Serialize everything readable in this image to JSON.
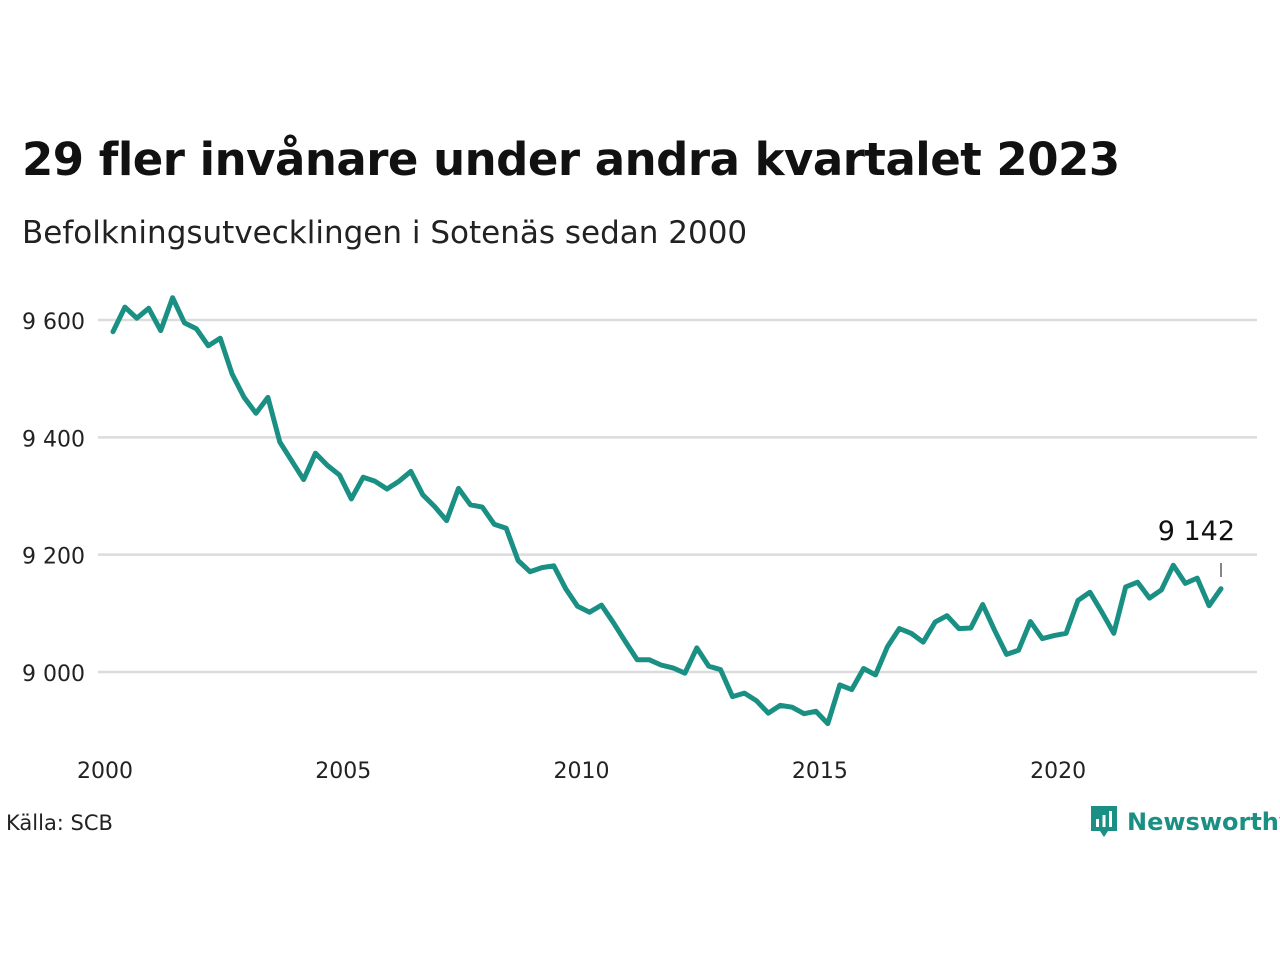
{
  "title": "29 fler invånare under andra kvartalet 2023",
  "subtitle": "Befolkningsutvecklingen i Sotenäs sedan 2000",
  "source": "Källa: SCB",
  "brand": {
    "name": "Newsworthy",
    "icon": "bar-chart-icon",
    "color": "#1a8f83"
  },
  "chart_data": {
    "type": "line",
    "title": "29 fler invånare under andra kvartalet 2023",
    "subtitle": "Befolkningsutvecklingen i Sotenäs sedan 2000",
    "xlabel": "",
    "ylabel": "",
    "xlim": [
      2000,
      2024
    ],
    "ylim": [
      8920,
      9640
    ],
    "x_ticks": [
      2000,
      2005,
      2010,
      2015,
      2020
    ],
    "x_tick_labels": [
      "2000",
      "2005",
      "2010",
      "2015",
      "2020"
    ],
    "y_ticks": [
      9000,
      9200,
      9400,
      9600
    ],
    "y_tick_labels": [
      "9 000",
      "9 200",
      "9 400",
      "9 600"
    ],
    "grid": "horizontal",
    "line_color": "#1a8f83",
    "annotation": {
      "text": "9 142",
      "x": 2023.25,
      "y": 9142
    },
    "series": [
      {
        "values": [
          [
            2000.0,
            9580
          ],
          [
            2000.25,
            9622
          ],
          [
            2000.5,
            9603
          ],
          [
            2000.75,
            9620
          ],
          [
            2001.0,
            9582
          ],
          [
            2001.25,
            9638
          ],
          [
            2001.5,
            9595
          ],
          [
            2001.75,
            9585
          ],
          [
            2002.0,
            9556
          ],
          [
            2002.25,
            9569
          ],
          [
            2002.5,
            9508
          ],
          [
            2002.75,
            9468
          ],
          [
            2003.0,
            9441
          ],
          [
            2003.25,
            9468
          ],
          [
            2003.5,
            9392
          ],
          [
            2003.75,
            9360
          ],
          [
            2004.0,
            9328
          ],
          [
            2004.25,
            9373
          ],
          [
            2004.5,
            9352
          ],
          [
            2004.75,
            9336
          ],
          [
            2005.0,
            9295
          ],
          [
            2005.25,
            9332
          ],
          [
            2005.5,
            9325
          ],
          [
            2005.75,
            9312
          ],
          [
            2006.0,
            9325
          ],
          [
            2006.25,
            9342
          ],
          [
            2006.5,
            9302
          ],
          [
            2006.75,
            9282
          ],
          [
            2007.0,
            9258
          ],
          [
            2007.25,
            9313
          ],
          [
            2007.5,
            9285
          ],
          [
            2007.75,
            9281
          ],
          [
            2008.0,
            9252
          ],
          [
            2008.25,
            9245
          ],
          [
            2008.5,
            9190
          ],
          [
            2008.75,
            9171
          ],
          [
            2009.0,
            9178
          ],
          [
            2009.25,
            9181
          ],
          [
            2009.5,
            9142
          ],
          [
            2009.75,
            9112
          ],
          [
            2010.0,
            9102
          ],
          [
            2010.25,
            9114
          ],
          [
            2010.5,
            9084
          ],
          [
            2010.75,
            9052
          ],
          [
            2011.0,
            9021
          ],
          [
            2011.25,
            9021
          ],
          [
            2011.5,
            9012
          ],
          [
            2011.75,
            9007
          ],
          [
            2012.0,
            8998
          ],
          [
            2012.25,
            9041
          ],
          [
            2012.5,
            9010
          ],
          [
            2012.75,
            9004
          ],
          [
            2013.0,
            8958
          ],
          [
            2013.25,
            8964
          ],
          [
            2013.5,
            8951
          ],
          [
            2013.75,
            8930
          ],
          [
            2014.0,
            8943
          ],
          [
            2014.25,
            8940
          ],
          [
            2014.5,
            8929
          ],
          [
            2014.75,
            8933
          ],
          [
            2015.0,
            8912
          ],
          [
            2015.25,
            8978
          ],
          [
            2015.5,
            8970
          ],
          [
            2015.75,
            9006
          ],
          [
            2016.0,
            8995
          ],
          [
            2016.25,
            9043
          ],
          [
            2016.5,
            9074
          ],
          [
            2016.75,
            9066
          ],
          [
            2017.0,
            9051
          ],
          [
            2017.25,
            9085
          ],
          [
            2017.5,
            9096
          ],
          [
            2017.75,
            9074
          ],
          [
            2018.0,
            9075
          ],
          [
            2018.25,
            9115
          ],
          [
            2018.5,
            9071
          ],
          [
            2018.75,
            9030
          ],
          [
            2019.0,
            9037
          ],
          [
            2019.25,
            9086
          ],
          [
            2019.5,
            9057
          ],
          [
            2019.75,
            9062
          ],
          [
            2020.0,
            9066
          ],
          [
            2020.25,
            9122
          ],
          [
            2020.5,
            9136
          ],
          [
            2020.75,
            9102
          ],
          [
            2021.0,
            9066
          ],
          [
            2021.25,
            9145
          ],
          [
            2021.5,
            9153
          ],
          [
            2021.75,
            9126
          ],
          [
            2022.0,
            9140
          ],
          [
            2022.25,
            9182
          ],
          [
            2022.5,
            9151
          ],
          [
            2022.75,
            9160
          ],
          [
            2023.0,
            9113
          ],
          [
            2023.25,
            9142
          ]
        ]
      }
    ]
  }
}
